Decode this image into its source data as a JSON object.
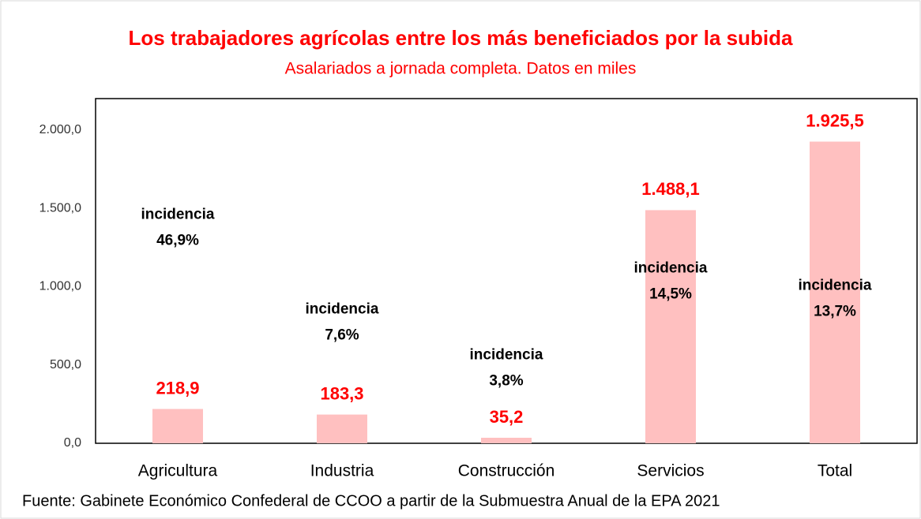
{
  "chart_data": {
    "type": "bar",
    "title": "Los trabajadores agrícolas entre los más beneficiados por la subida",
    "subtitle": "Asalariados a jornada completa. Datos en miles",
    "categories": [
      "Agricultura",
      "Industria",
      "Construcción",
      "Servicios",
      "Total"
    ],
    "values": [
      218.9,
      183.3,
      35.2,
      1488.1,
      1925.5
    ],
    "value_labels": [
      "218,9",
      "183,3",
      "35,2",
      "1.488,1",
      "1.925,5"
    ],
    "annotations": [
      [
        "incidencia",
        "46,9%"
      ],
      [
        "incidencia",
        "7,6%"
      ],
      [
        "incidencia",
        "3,8%"
      ],
      [
        "incidencia",
        "14,5%"
      ],
      [
        "incidencia",
        "13,7%"
      ]
    ],
    "color": "#ffc0c0",
    "ylim": [
      0,
      2200
    ],
    "yticks": [
      {
        "value": 0,
        "label": "0,0"
      },
      {
        "value": 500,
        "label": "500,0"
      },
      {
        "value": 1000,
        "label": "1.000,0"
      },
      {
        "value": 1500,
        "label": "1.500,0"
      },
      {
        "value": 2000,
        "label": "2.000,0"
      }
    ],
    "grid": false,
    "source": "Fuente: Gabinete Económico Confederal de CCOO a partir de la Submuestra Anual de la EPA 2021"
  }
}
